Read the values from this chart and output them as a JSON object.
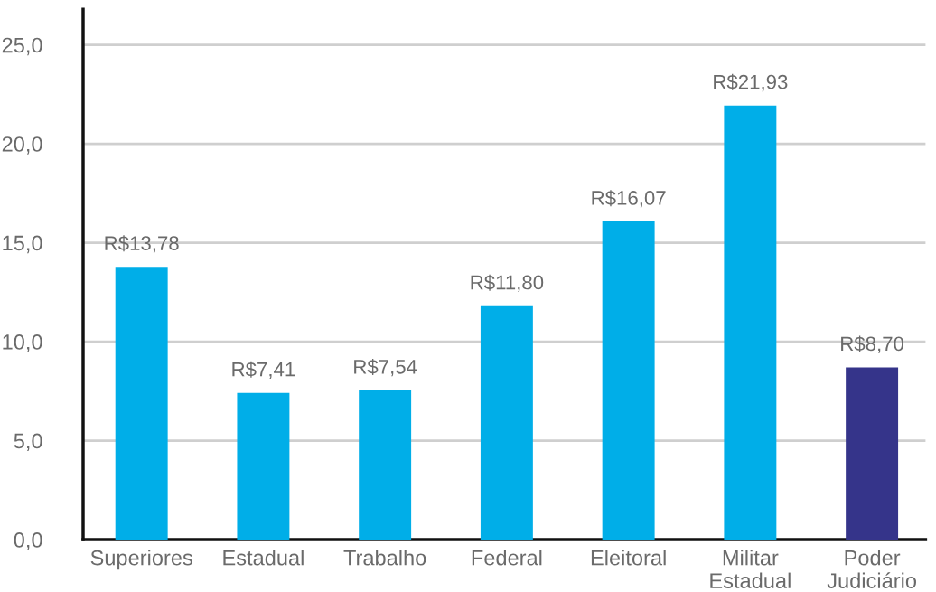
{
  "chart_data": {
    "type": "bar",
    "categories": [
      "Superiores",
      "Estadual",
      "Trabalho",
      "Federal",
      "Eleitoral",
      "Militar\nEstadual",
      "Poder\nJudiciário"
    ],
    "values": [
      13.78,
      7.41,
      7.54,
      11.8,
      16.07,
      21.93,
      8.7
    ],
    "colors": [
      "#00aee8",
      "#00aee8",
      "#00aee8",
      "#00aee8",
      "#00aee8",
      "#00aee8",
      "#35348a"
    ],
    "value_labels": [
      "R$13,78",
      "R$7,41",
      "R$7,54",
      "R$11,80",
      "R$16,07",
      "R$21,93",
      "R$8,70"
    ],
    "ylim": [
      0,
      26.8
    ],
    "yticks": [
      {
        "value": 0,
        "label": "0,0"
      },
      {
        "value": 5,
        "label": "5,0"
      },
      {
        "value": 10,
        "label": "10,0"
      },
      {
        "value": 15,
        "label": "15,0"
      },
      {
        "value": 20,
        "label": "20,0"
      },
      {
        "value": 25,
        "label": "25,0"
      }
    ],
    "grid": "y"
  }
}
